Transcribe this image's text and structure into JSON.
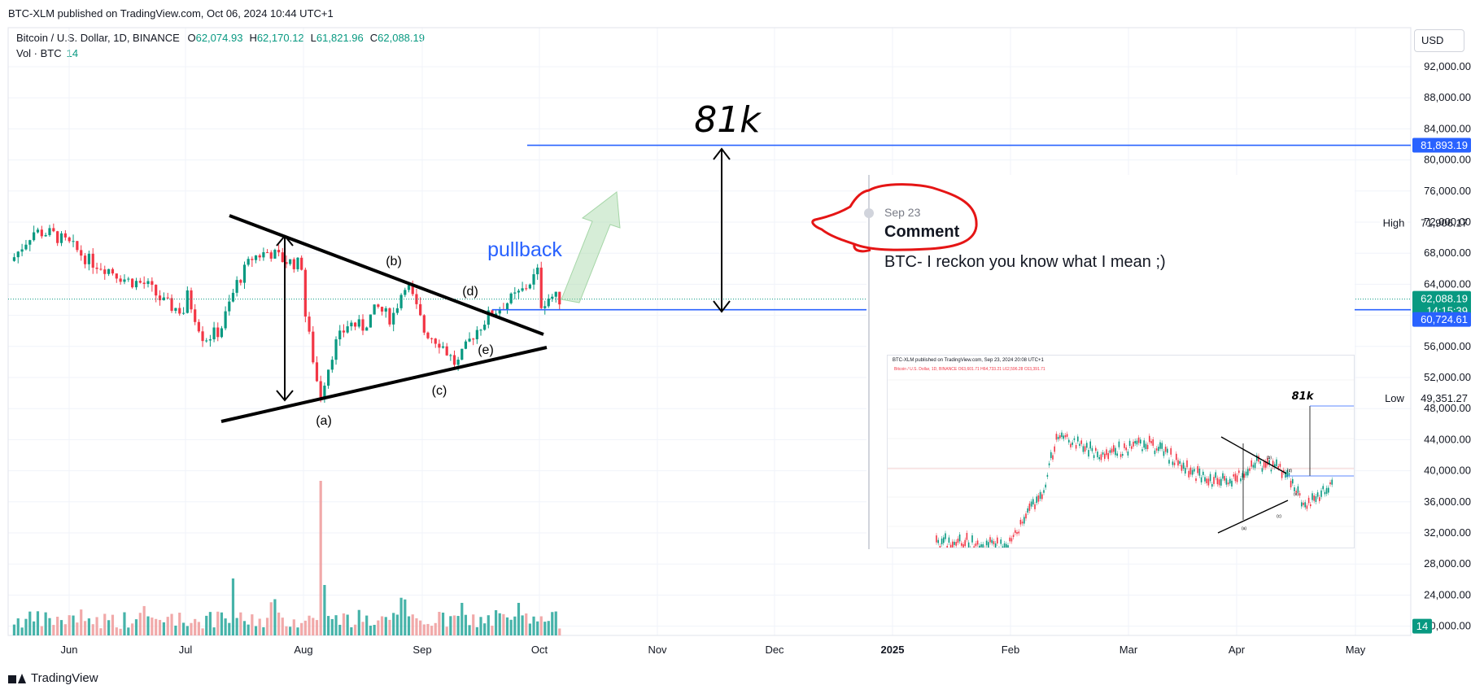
{
  "header": {
    "published": "BTC-XLM published on TradingView.com, Oct 06, 2024 10:44 UTC+1",
    "symbol_line": "Bitcoin / U.S. Dollar, 1D, BINANCE",
    "ohlc": [
      {
        "k": "O",
        "v": "62,074.93"
      },
      {
        "k": "H",
        "v": "62,170.12"
      },
      {
        "k": "L",
        "v": "61,821.96"
      },
      {
        "k": "C",
        "v": "62,088.19"
      }
    ],
    "vol_label": "Vol · BTC",
    "vol_value": "14",
    "currency_button": "USD"
  },
  "footer": {
    "brand": "TradingView"
  },
  "colors": {
    "up": "#089981",
    "down": "#f23645",
    "vol_up": "#26a69a",
    "vol_down": "#ef9a9a",
    "blue": "#2962ff",
    "annotation_red": "#e51515",
    "arrow_green": "#a5d6a7"
  },
  "chart_data": {
    "type": "candlestick",
    "title": "Bitcoin / U.S. Dollar, 1D, BINANCE",
    "y_axis": {
      "ticks": [
        "92,000.00",
        "88,000.00",
        "84,000.00",
        "80,000.00",
        "76,000.00",
        "72,000.00",
        "68,000.00",
        "64,000.00",
        "60,000.00",
        "56,000.00",
        "52,000.00",
        "48,000.00",
        "44,000.00",
        "40,000.00",
        "36,000.00",
        "32,000.00",
        "28,000.00",
        "24,000.00",
        "20,000.00"
      ],
      "range": [
        19500,
        93500
      ]
    },
    "x_axis": {
      "ticks": [
        "Jun",
        "Jul",
        "Aug",
        "Sep",
        "Oct",
        "Nov",
        "Dec",
        "2025",
        "Feb",
        "Mar",
        "Apr",
        "May"
      ]
    },
    "price_tags": {
      "target": "81,893.19",
      "last_price": "62,088.19",
      "countdown": "14:15:39",
      "support": "60,724.61",
      "high_label": "High",
      "high_value": "71,906.17",
      "low_label": "Low",
      "low_value": "49,351.27",
      "volume_tag": "14"
    },
    "horizontal_levels": [
      81893.19,
      60724.61
    ],
    "annotations": {
      "target_text": "81k",
      "pullback_text": "pullback",
      "waves": [
        "(a)",
        "(b)",
        "(c)",
        "(d)",
        "(e)"
      ]
    },
    "approx_daily_close": {
      "Jun": [
        67500,
        70800,
        70500,
        69000,
        67000,
        66000,
        64500,
        64000,
        61500,
        60500
      ],
      "Jul": [
        62500,
        57000,
        58000,
        64000,
        67500,
        68200,
        67000,
        66500
      ],
      "Aug": [
        60000,
        49500,
        56000,
        59000,
        58500,
        61000,
        59500,
        64500,
        59500
      ],
      "Sep": [
        58000,
        56500,
        53500,
        57500,
        60000,
        61500,
        63000,
        65500
      ],
      "Oct": [
        61500,
        62500,
        62088
      ]
    }
  },
  "comment_card": {
    "date": "Sep 23",
    "title": "Comment",
    "body": "BTC- I reckon you know what I mean ;)"
  },
  "inset": {
    "published": "BTC-XLM published on TradingView.com, Sep 23, 2024 20:08 UTC+1",
    "legend": "Bitcoin / U.S. Dollar, 1D, BINANCE O63,601.71 H64,733.21 L62,596.28 C63,391.71",
    "target_text": "81k",
    "waves": [
      "(a)",
      "(b)",
      "(c)",
      "(d)",
      "(e)"
    ]
  }
}
